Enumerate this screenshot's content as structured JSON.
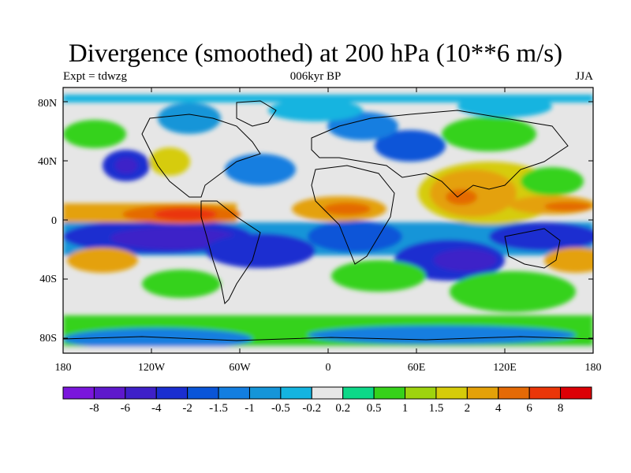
{
  "title": "Divergence (smoothed) at 200 hPa (10**6 m/s)",
  "expt_label": "Expt = tdwzg",
  "period_label": "006kyr BP",
  "season_label": "JJA",
  "lat_ticks": [
    "80N",
    "40N",
    "0",
    "40S",
    "80S"
  ],
  "lon_ticks": [
    "180",
    "120W",
    "60W",
    "0",
    "60E",
    "120E",
    "180"
  ],
  "colorbar": {
    "labels": [
      "-8",
      "-6",
      "-4",
      "-2",
      "-1.5",
      "-1",
      "-0.5",
      "-0.2",
      "0.2",
      "0.5",
      "1",
      "1.5",
      "2",
      "4",
      "6",
      "8"
    ],
    "colors": [
      "#7a16dc",
      "#5e18cc",
      "#3e20c8",
      "#1a2ed0",
      "#0a55d8",
      "#137ee0",
      "#1595d8",
      "#14b4e0",
      "#e6e6e6",
      "#0dd888",
      "#36d21a",
      "#9ed30e",
      "#d6cc0a",
      "#e4a108",
      "#e46a06",
      "#ea3608",
      "#dc0006"
    ]
  }
}
